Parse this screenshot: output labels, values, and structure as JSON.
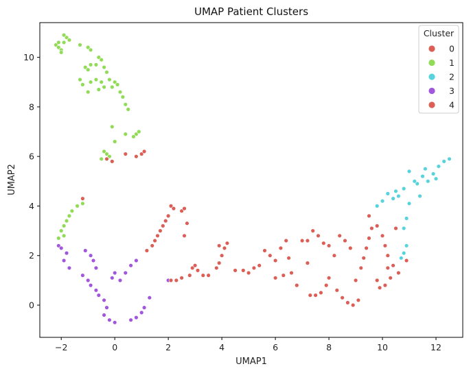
{
  "chart_data": {
    "type": "scatter",
    "title": "UMAP Patient Clusters",
    "xlabel": "UMAP1",
    "ylabel": "UMAP2",
    "xlim": [
      -2.8,
      13.0
    ],
    "ylim": [
      -1.3,
      11.4
    ],
    "xticks": [
      "−2",
      "0",
      "2",
      "4",
      "6",
      "8",
      "10",
      "12"
    ],
    "yticks": [
      "0",
      "2",
      "4",
      "6",
      "8",
      "10"
    ],
    "legend": {
      "title": "Cluster",
      "position": "top-right",
      "entries": [
        {
          "label": "0",
          "color": "#db5f57"
        },
        {
          "label": "1",
          "color": "#91db57"
        },
        {
          "label": "2",
          "color": "#57d3db"
        },
        {
          "label": "3",
          "color": "#a157db"
        },
        {
          "label": "4",
          "color": "#db5f57"
        }
      ]
    },
    "series": [
      {
        "color": "#91db57",
        "points": [
          [
            -2.2,
            10.5
          ],
          [
            -2.1,
            10.4
          ],
          [
            -2.0,
            10.3
          ],
          [
            -1.9,
            10.6
          ],
          [
            -1.8,
            10.8
          ],
          [
            -1.7,
            10.7
          ],
          [
            -1.9,
            10.9
          ],
          [
            -2.1,
            10.6
          ],
          [
            -2.0,
            10.2
          ],
          [
            -1.3,
            10.5
          ],
          [
            -1.0,
            10.4
          ],
          [
            -0.9,
            10.3
          ],
          [
            -0.6,
            10.0
          ],
          [
            -0.5,
            9.9
          ],
          [
            -0.9,
            9.7
          ],
          [
            -1.1,
            9.6
          ],
          [
            -0.7,
            9.7
          ],
          [
            -0.4,
            9.6
          ],
          [
            -0.3,
            9.4
          ],
          [
            -1.0,
            9.5
          ],
          [
            -1.3,
            9.1
          ],
          [
            -1.2,
            8.9
          ],
          [
            -0.9,
            9.0
          ],
          [
            -0.7,
            9.1
          ],
          [
            -0.5,
            9.0
          ],
          [
            -0.2,
            9.1
          ],
          [
            0.0,
            9.0
          ],
          [
            0.1,
            8.9
          ],
          [
            -0.1,
            8.8
          ],
          [
            0.2,
            8.6
          ],
          [
            -0.4,
            8.8
          ],
          [
            -0.6,
            8.7
          ],
          [
            0.3,
            8.4
          ],
          [
            0.4,
            8.1
          ],
          [
            0.5,
            7.9
          ],
          [
            -1.0,
            8.6
          ],
          [
            -0.1,
            7.2
          ],
          [
            0.4,
            6.9
          ],
          [
            0.8,
            6.9
          ],
          [
            0.9,
            7.0
          ],
          [
            0.7,
            6.8
          ],
          [
            0.0,
            6.6
          ],
          [
            -0.4,
            6.2
          ],
          [
            -0.3,
            6.1
          ],
          [
            -0.2,
            6.0
          ],
          [
            -0.5,
            5.9
          ],
          [
            -1.2,
            4.1
          ],
          [
            -1.4,
            4.0
          ],
          [
            -1.6,
            3.8
          ],
          [
            -1.7,
            3.6
          ],
          [
            -1.8,
            3.4
          ],
          [
            -1.9,
            3.2
          ],
          [
            -2.0,
            3.0
          ],
          [
            -1.9,
            2.8
          ],
          [
            -2.1,
            2.7
          ]
        ]
      },
      {
        "color": "#57d3db",
        "points": [
          [
            12.5,
            5.9
          ],
          [
            12.3,
            5.8
          ],
          [
            12.1,
            5.6
          ],
          [
            11.9,
            5.3
          ],
          [
            11.7,
            5.0
          ],
          [
            11.5,
            5.2
          ],
          [
            11.3,
            4.9
          ],
          [
            11.0,
            5.4
          ],
          [
            11.2,
            5.0
          ],
          [
            10.8,
            4.7
          ],
          [
            10.6,
            4.4
          ],
          [
            10.4,
            4.3
          ],
          [
            10.2,
            4.5
          ],
          [
            10.0,
            4.2
          ],
          [
            9.8,
            4.0
          ],
          [
            11.4,
            4.4
          ],
          [
            11.0,
            4.1
          ],
          [
            10.9,
            3.5
          ],
          [
            10.8,
            3.1
          ],
          [
            10.9,
            2.4
          ],
          [
            10.8,
            2.1
          ],
          [
            10.7,
            1.9
          ],
          [
            12.0,
            5.1
          ],
          [
            11.6,
            5.5
          ],
          [
            10.5,
            4.6
          ]
        ]
      },
      {
        "color": "#a157db",
        "points": [
          [
            -2.1,
            2.4
          ],
          [
            -2.0,
            2.3
          ],
          [
            -1.8,
            2.1
          ],
          [
            -1.9,
            1.8
          ],
          [
            -1.7,
            1.5
          ],
          [
            -1.1,
            2.2
          ],
          [
            -0.9,
            2.0
          ],
          [
            -0.8,
            1.8
          ],
          [
            -0.7,
            1.5
          ],
          [
            -1.2,
            1.2
          ],
          [
            -1.0,
            1.0
          ],
          [
            -0.9,
            0.8
          ],
          [
            -0.7,
            0.6
          ],
          [
            -0.6,
            0.4
          ],
          [
            -0.4,
            0.2
          ],
          [
            -0.3,
            -0.1
          ],
          [
            -0.4,
            -0.4
          ],
          [
            -0.2,
            -0.6
          ],
          [
            0.0,
            -0.7
          ],
          [
            0.2,
            1.0
          ],
          [
            0.4,
            1.3
          ],
          [
            0.6,
            1.6
          ],
          [
            0.8,
            1.8
          ],
          [
            0.6,
            -0.6
          ],
          [
            0.8,
            -0.5
          ],
          [
            1.0,
            -0.3
          ],
          [
            1.1,
            -0.1
          ],
          [
            1.3,
            0.3
          ],
          [
            2.0,
            1.0
          ],
          [
            0.0,
            1.3
          ],
          [
            -0.1,
            1.1
          ]
        ]
      },
      {
        "color": "#db5f57",
        "points": [
          [
            -1.2,
            4.3
          ],
          [
            -0.3,
            5.9
          ],
          [
            -0.1,
            5.8
          ],
          [
            0.4,
            6.1
          ],
          [
            0.8,
            6.0
          ],
          [
            1.0,
            6.1
          ],
          [
            1.1,
            6.2
          ],
          [
            1.2,
            2.2
          ],
          [
            1.4,
            2.4
          ],
          [
            1.5,
            2.6
          ],
          [
            1.6,
            2.8
          ],
          [
            1.7,
            3.0
          ],
          [
            1.8,
            3.2
          ],
          [
            1.9,
            3.4
          ],
          [
            2.0,
            3.6
          ],
          [
            2.1,
            4.0
          ],
          [
            2.2,
            3.9
          ],
          [
            2.5,
            3.8
          ],
          [
            2.6,
            3.9
          ],
          [
            2.7,
            3.3
          ],
          [
            2.6,
            2.8
          ],
          [
            2.5,
            1.1
          ],
          [
            2.3,
            1.0
          ],
          [
            2.1,
            1.0
          ],
          [
            2.8,
            1.2
          ],
          [
            2.9,
            1.5
          ],
          [
            3.0,
            1.6
          ],
          [
            3.1,
            1.4
          ],
          [
            3.3,
            1.2
          ],
          [
            3.5,
            1.2
          ],
          [
            3.8,
            1.5
          ],
          [
            3.9,
            1.7
          ],
          [
            4.0,
            2.0
          ],
          [
            4.1,
            2.3
          ],
          [
            4.2,
            2.5
          ],
          [
            3.9,
            2.4
          ],
          [
            4.5,
            1.4
          ],
          [
            4.8,
            1.4
          ],
          [
            5.2,
            1.5
          ],
          [
            5.4,
            1.6
          ],
          [
            5.6,
            2.2
          ],
          [
            5.8,
            2.0
          ],
          [
            6.0,
            1.8
          ],
          [
            6.2,
            2.3
          ],
          [
            6.4,
            2.6
          ],
          [
            6.6,
            1.3
          ],
          [
            6.8,
            0.8
          ],
          [
            6.3,
            1.2
          ],
          [
            6.0,
            1.1
          ],
          [
            7.0,
            2.6
          ],
          [
            7.2,
            2.6
          ],
          [
            7.4,
            3.0
          ],
          [
            7.6,
            2.8
          ],
          [
            7.8,
            2.5
          ],
          [
            8.0,
            2.4
          ],
          [
            8.2,
            2.0
          ],
          [
            8.4,
            2.8
          ],
          [
            8.6,
            2.6
          ],
          [
            8.8,
            2.3
          ],
          [
            7.3,
            0.4
          ],
          [
            7.5,
            0.4
          ],
          [
            7.7,
            0.5
          ],
          [
            7.9,
            0.8
          ],
          [
            8.0,
            1.1
          ],
          [
            8.3,
            0.6
          ],
          [
            8.5,
            0.3
          ],
          [
            8.7,
            0.1
          ],
          [
            8.9,
            0.0
          ],
          [
            9.1,
            0.2
          ],
          [
            9.0,
            1.0
          ],
          [
            9.2,
            1.5
          ],
          [
            9.3,
            1.9
          ],
          [
            9.4,
            2.3
          ],
          [
            9.5,
            2.7
          ],
          [
            9.6,
            3.1
          ],
          [
            9.5,
            3.6
          ],
          [
            9.8,
            3.2
          ],
          [
            10.0,
            2.8
          ],
          [
            10.1,
            2.4
          ],
          [
            10.2,
            2.0
          ],
          [
            10.4,
            1.6
          ],
          [
            10.2,
            1.5
          ],
          [
            9.8,
            1.0
          ],
          [
            9.9,
            0.7
          ],
          [
            10.1,
            0.8
          ],
          [
            10.3,
            1.1
          ],
          [
            10.6,
            1.3
          ],
          [
            10.5,
            3.1
          ],
          [
            10.9,
            1.8
          ],
          [
            7.2,
            1.7
          ],
          [
            6.5,
            1.9
          ],
          [
            5.0,
            1.3
          ]
        ]
      }
    ]
  }
}
